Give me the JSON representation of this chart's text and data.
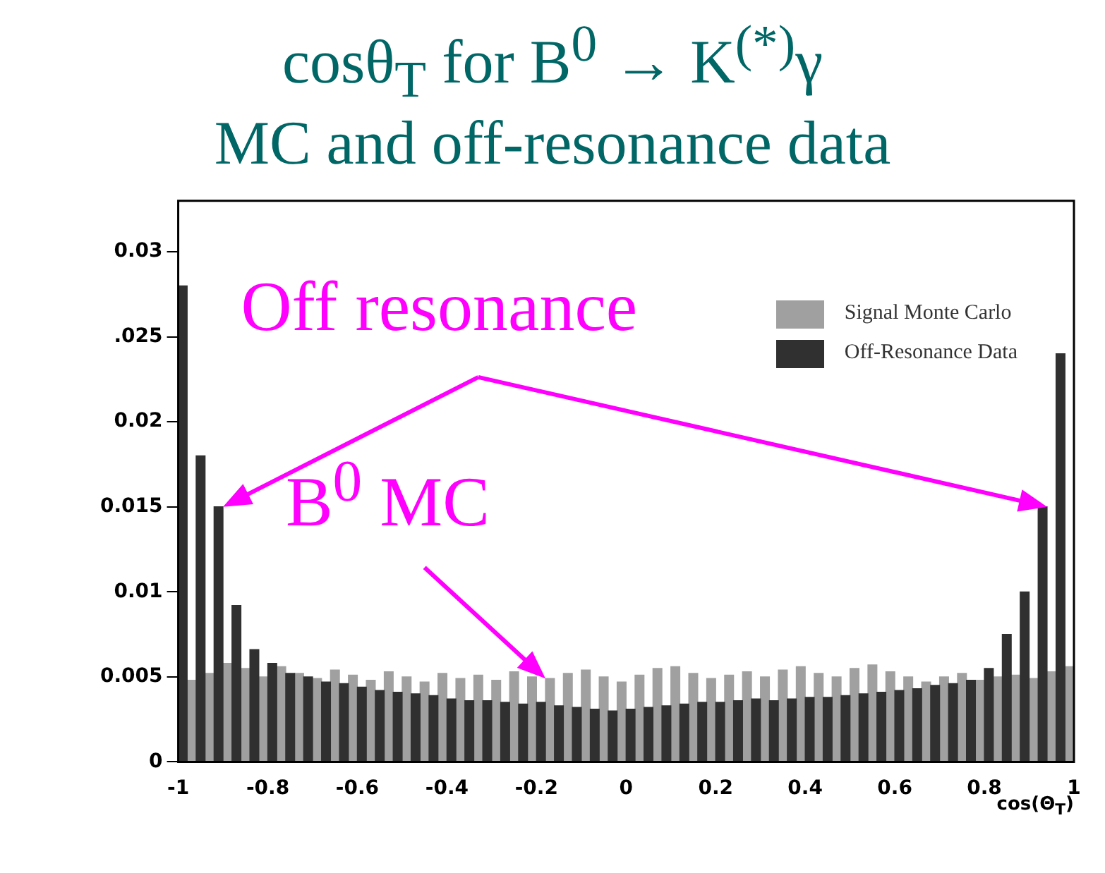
{
  "chart_data": {
    "type": "histogram",
    "title": "cosθ$_{T}$ for B$^{0}$ → K$^{(*)}$γ",
    "subtitle": "MC and off-resonance data",
    "xlabel": "cos(Θ$_{T}$)",
    "annotations": [
      {
        "text": "Off resonance",
        "x": -0.9,
        "y": 0.015
      },
      {
        "text": "B$^{0}$ MC",
        "x": -0.18,
        "y": 0.0049
      }
    ],
    "bins": [
      -1,
      -0.96,
      -0.92,
      -0.88,
      -0.84,
      -0.8,
      -0.76,
      -0.72,
      -0.68,
      -0.64,
      -0.6,
      -0.56,
      -0.52,
      -0.48,
      -0.44,
      -0.4,
      -0.36,
      -0.32,
      -0.28,
      -0.24,
      -0.2,
      -0.16,
      -0.12,
      -0.08,
      -0.04,
      0,
      0.04,
      0.08,
      0.12,
      0.16,
      0.2,
      0.24,
      0.28,
      0.32,
      0.36,
      0.4,
      0.44,
      0.48,
      0.52,
      0.56,
      0.6,
      0.64,
      0.68,
      0.72,
      0.76,
      0.8,
      0.84,
      0.88,
      0.92,
      0.96,
      1
    ],
    "series": [
      {
        "name": "Signal Monte Carlo",
        "color": "#a0a0a0",
        "values": [
          0.0048,
          0.0052,
          0.0058,
          0.0055,
          0.005,
          0.0056,
          0.0052,
          0.0049,
          0.0054,
          0.0051,
          0.0048,
          0.0053,
          0.005,
          0.0047,
          0.0052,
          0.0049,
          0.0051,
          0.0048,
          0.0053,
          0.005,
          0.0049,
          0.0052,
          0.0054,
          0.005,
          0.0047,
          0.0051,
          0.0055,
          0.0056,
          0.0052,
          0.0049,
          0.0051,
          0.0053,
          0.005,
          0.0054,
          0.0056,
          0.0052,
          0.005,
          0.0055,
          0.0057,
          0.0053,
          0.005,
          0.0047,
          0.005,
          0.0052,
          0.0048,
          0.005,
          0.0051,
          0.0049,
          0.0053,
          0.0056
        ]
      },
      {
        "name": "Off-Resonance Data",
        "color": "#303030",
        "values": [
          0.028,
          0.018,
          0.015,
          0.0092,
          0.0066,
          0.0058,
          0.0052,
          0.005,
          0.0047,
          0.0046,
          0.0044,
          0.0042,
          0.0041,
          0.004,
          0.0039,
          0.0037,
          0.0036,
          0.0036,
          0.0035,
          0.0034,
          0.0035,
          0.0033,
          0.0032,
          0.0031,
          0.003,
          0.0031,
          0.0032,
          0.0033,
          0.0034,
          0.0035,
          0.0035,
          0.0036,
          0.0037,
          0.0036,
          0.0037,
          0.0038,
          0.0038,
          0.0039,
          0.004,
          0.0041,
          0.0042,
          0.0043,
          0.0045,
          0.0046,
          0.0048,
          0.0055,
          0.0075,
          0.01,
          0.015,
          0.024
        ]
      }
    ],
    "xlim": [
      -1,
      1
    ],
    "xticks": [
      -1,
      -0.8,
      -0.6,
      -0.4,
      -0.2,
      0,
      0.2,
      0.4,
      0.6,
      0.8,
      1
    ],
    "ylim": [
      0,
      0.033
    ],
    "yticks": [
      0,
      0.005,
      0.01,
      0.015,
      0.02,
      {
        "value": 0.025,
        "label": ".025"
      },
      0.03
    ],
    "legend": "top right"
  }
}
